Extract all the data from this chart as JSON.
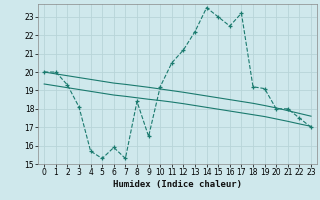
{
  "xlabel": "Humidex (Indice chaleur)",
  "bg_color": "#cfe8ec",
  "line_color": "#1a7a6e",
  "grid_color": "#b8d4d8",
  "xlim": [
    -0.5,
    23.5
  ],
  "ylim": [
    15,
    23.7
  ],
  "yticks": [
    15,
    16,
    17,
    18,
    19,
    20,
    21,
    22,
    23
  ],
  "xticks": [
    0,
    1,
    2,
    3,
    4,
    5,
    6,
    7,
    8,
    9,
    10,
    11,
    12,
    13,
    14,
    15,
    16,
    17,
    18,
    19,
    20,
    21,
    22,
    23
  ],
  "line1_x": [
    0,
    1,
    2,
    3,
    4,
    5,
    6,
    7,
    8,
    9,
    10,
    11,
    12,
    13,
    14,
    15,
    16,
    17,
    18,
    19,
    20,
    21,
    22,
    23
  ],
  "line1_y": [
    20.0,
    20.0,
    19.3,
    18.1,
    15.7,
    15.3,
    15.9,
    15.3,
    18.4,
    16.5,
    19.2,
    20.5,
    21.2,
    22.2,
    23.5,
    23.0,
    22.5,
    23.2,
    19.2,
    19.1,
    18.0,
    18.0,
    17.5,
    17.0
  ],
  "line2_x": [
    0,
    1,
    2,
    3,
    4,
    5,
    6,
    7,
    8,
    9,
    10,
    11,
    12,
    13,
    14,
    15,
    16,
    17,
    18,
    19,
    20,
    21,
    22,
    23
  ],
  "line2_y": [
    19.35,
    19.25,
    19.15,
    19.05,
    18.95,
    18.85,
    18.75,
    18.68,
    18.6,
    18.52,
    18.45,
    18.37,
    18.28,
    18.18,
    18.08,
    17.98,
    17.88,
    17.78,
    17.68,
    17.58,
    17.45,
    17.32,
    17.18,
    17.05
  ],
  "line3_x": [
    0,
    1,
    2,
    3,
    4,
    5,
    6,
    7,
    8,
    9,
    10,
    11,
    12,
    13,
    14,
    15,
    16,
    17,
    18,
    19,
    20,
    21,
    22,
    23
  ],
  "line3_y": [
    20.0,
    19.9,
    19.8,
    19.7,
    19.6,
    19.5,
    19.4,
    19.33,
    19.25,
    19.17,
    19.08,
    18.99,
    18.9,
    18.8,
    18.7,
    18.6,
    18.5,
    18.4,
    18.3,
    18.18,
    18.05,
    17.9,
    17.75,
    17.6
  ]
}
